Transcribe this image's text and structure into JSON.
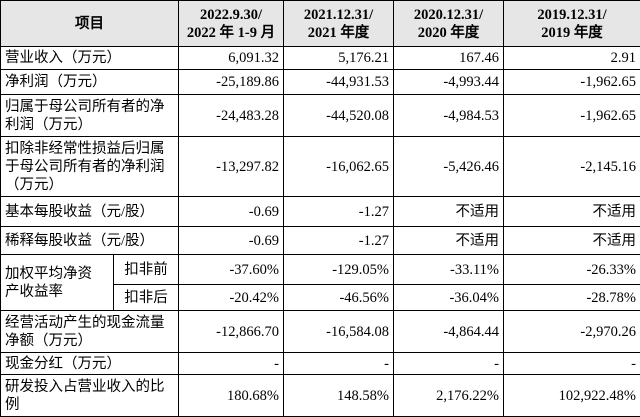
{
  "table": {
    "header": [
      [
        "项目"
      ],
      [
        "2022.9.30/",
        "2022 年 1-9 月"
      ],
      [
        "2021.12.31/",
        "2021 年度"
      ],
      [
        "2020.12.31/",
        "2020 年度"
      ],
      [
        "2019.12.31/",
        "2019 年度"
      ]
    ],
    "rows": [
      {
        "label": "营业收入（万元）",
        "values": [
          "6,091.32",
          "5,176.21",
          "167.46",
          "2.91"
        ]
      },
      {
        "label": "净利润（万元）",
        "values": [
          "-25,189.86",
          "-44,931.53",
          "-4,993.44",
          "-1,962.65"
        ]
      },
      {
        "label": "归属于母公司所有者的净利润（万元）",
        "values": [
          "-24,483.28",
          "-44,520.08",
          "-4,984.53",
          "-1,962.65"
        ]
      },
      {
        "label": "扣除非经常性损益后归属于母公司所有者的净利润（万元）",
        "values": [
          "-13,297.82",
          "-16,062.65",
          "-5,426.46",
          "-2,145.16"
        ]
      },
      {
        "label": "基本每股收益（元/股）",
        "values": [
          "-0.69",
          "-1.27",
          "不适用",
          "不适用"
        ]
      },
      {
        "label": "稀释每股收益（元/股）",
        "values": [
          "-0.69",
          "-1.27",
          "不适用",
          "不适用"
        ]
      },
      {
        "label": "加权平均净资产收益率",
        "sub_rows": [
          {
            "label": "扣非前",
            "values": [
              "-37.60%",
              "-129.05%",
              "-33.11%",
              "-26.33%"
            ]
          },
          {
            "label": "扣非后",
            "values": [
              "-20.42%",
              "-46.56%",
              "-36.04%",
              "-28.78%"
            ]
          }
        ]
      },
      {
        "label": "经营活动产生的现金流量净额（万元）",
        "values": [
          "-12,866.70",
          "-16,584.08",
          "-4,864.44",
          "-2,970.26"
        ]
      },
      {
        "label": "现金分红（万元）",
        "values": [
          "-",
          "-",
          "-",
          "-"
        ]
      },
      {
        "label": "研发投入占营业收入的比例",
        "values": [
          "180.68%",
          "148.58%",
          "2,176.22%",
          "102,922.48%"
        ]
      }
    ]
  }
}
